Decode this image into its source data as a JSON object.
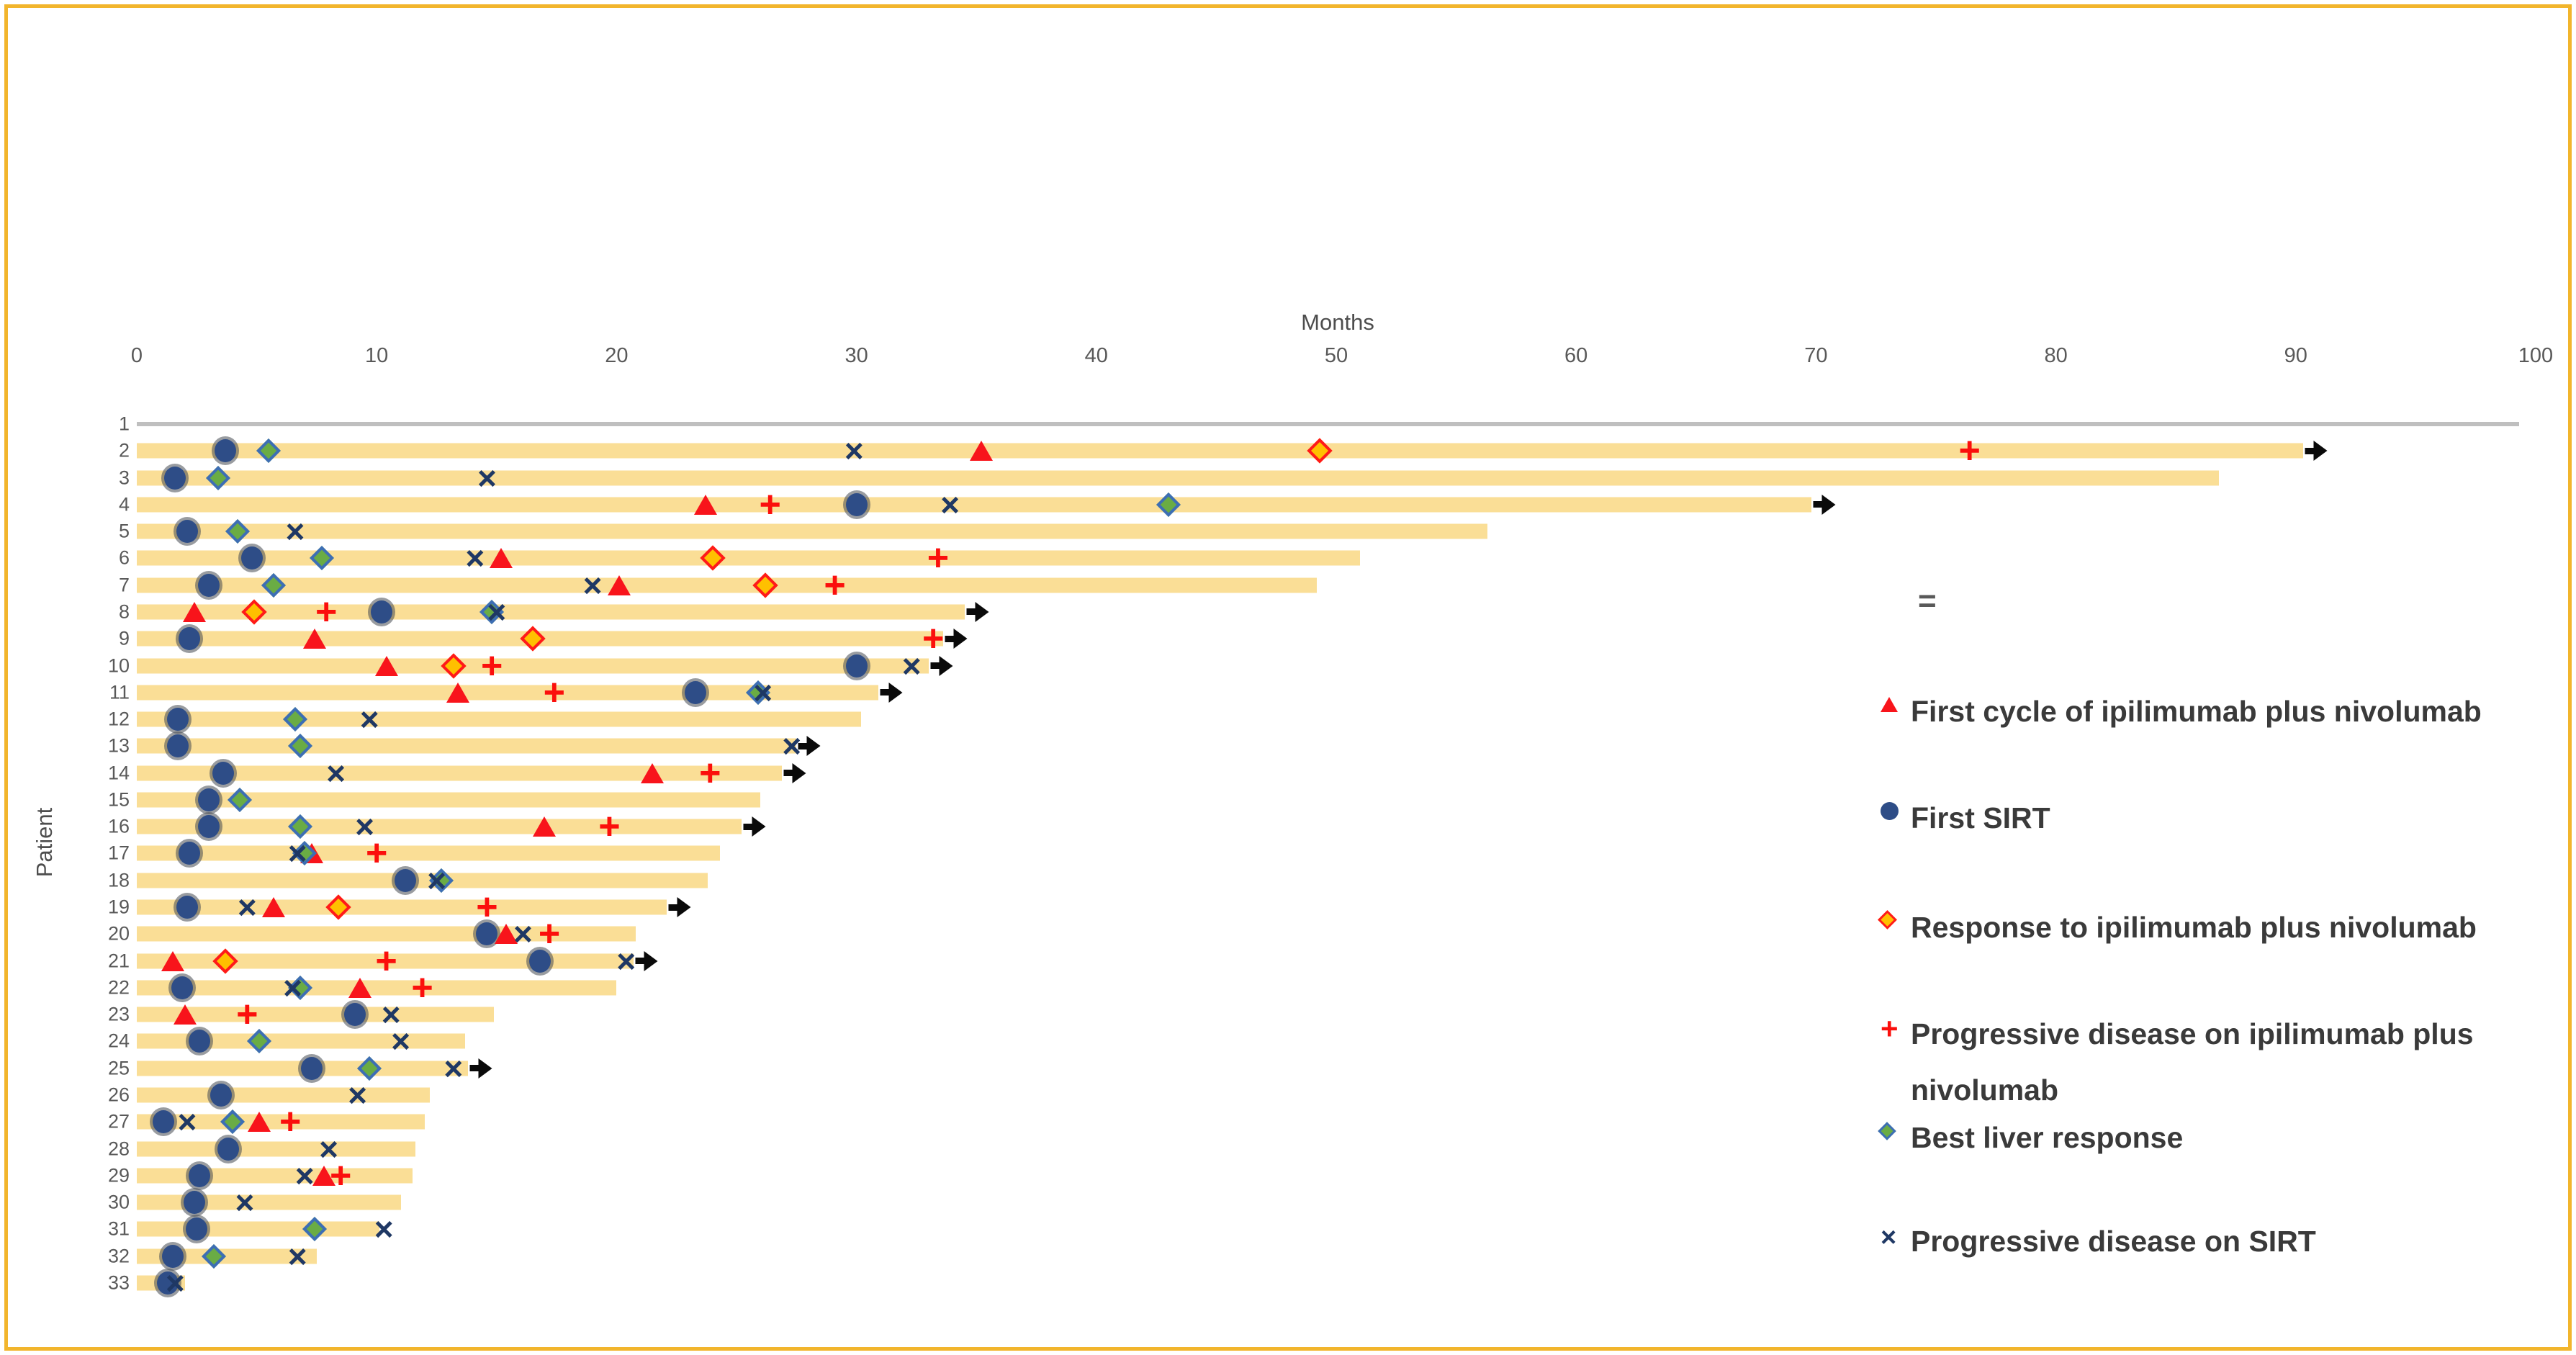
{
  "figure": {
    "frame_color": "#F2B52C",
    "background": "#ffffff"
  },
  "chart_data": {
    "type": "swimmer",
    "xlabel": "Months",
    "ylabel": "Patient",
    "xlim": [
      0,
      100
    ],
    "xticks": [
      0,
      10,
      20,
      30,
      40,
      50,
      60,
      70,
      80,
      90,
      100
    ],
    "grid": false,
    "legend_position": "right",
    "legend_note": "=",
    "bar_color": "#FADE96",
    "gray_bar_color": "#BFBFBF",
    "event_colors": {
      "first_ipi_nivo": "#F8141B",
      "first_sirt": "#2E4D87",
      "response_ipi_nivo_fill": "#FFC000",
      "response_ipi_nivo_border": "#FF1A1A",
      "pd_ipi_nivo": "#FB0F0C",
      "best_liver_fill": "#6AAC44",
      "best_liver_border": "#3D6EB5",
      "pd_sirt": "#1F3864",
      "ongoing_arrow": "#0a0a0a"
    },
    "legend": [
      {
        "key": "first_ipi_nivo",
        "label": "First cycle of ipilimumab plus nivolumab"
      },
      {
        "key": "first_sirt",
        "label": "First SIRT"
      },
      {
        "key": "response_ipi_nivo",
        "label": "Response to ipilimumab plus nivolumab"
      },
      {
        "key": "pd_ipi_nivo",
        "label": "Progressive disease on ipilimumab plus nivolumab"
      },
      {
        "key": "best_liver",
        "label": "Best liver response"
      },
      {
        "key": "pd_sirt",
        "label": "Progressive disease on SIRT"
      }
    ],
    "patients": [
      {
        "id": 1,
        "bar": 99.3,
        "style": "gray",
        "ongoing": false,
        "events": {}
      },
      {
        "id": 2,
        "bar": 90.3,
        "ongoing": true,
        "events": {
          "first_sirt": 3.7,
          "best_liver": 5.5,
          "pd_sirt": 29.9,
          "first_ipi_nivo": 35.2,
          "response_ipi_nivo": 49.3,
          "pd_ipi_nivo": 76.4
        }
      },
      {
        "id": 3,
        "bar": 86.8,
        "ongoing": false,
        "events": {
          "first_sirt": 1.6,
          "pd_ipi_nivo": 3.4,
          "best_liver": 3.4,
          "pd_sirt": 14.6
        }
      },
      {
        "id": 4,
        "bar": 69.8,
        "ongoing": true,
        "events": {
          "first_ipi_nivo": 23.7,
          "pd_ipi_nivo": 26.4,
          "first_sirt": 30.0,
          "pd_sirt": 33.9,
          "best_liver": 43.0
        }
      },
      {
        "id": 5,
        "bar": 56.3,
        "ongoing": false,
        "events": {
          "first_sirt": 2.1,
          "best_liver": 4.2,
          "pd_sirt": 6.6
        }
      },
      {
        "id": 6,
        "bar": 51.0,
        "ongoing": false,
        "events": {
          "first_sirt": 4.8,
          "best_liver": 7.7,
          "pd_sirt": 14.1,
          "first_ipi_nivo": 15.2,
          "response_ipi_nivo": 24.0,
          "pd_ipi_nivo": 33.4
        }
      },
      {
        "id": 7,
        "bar": 49.2,
        "ongoing": false,
        "events": {
          "first_sirt": 3.0,
          "best_liver": 5.7,
          "pd_sirt": 19.0,
          "first_ipi_nivo": 20.1,
          "response_ipi_nivo": 26.2,
          "pd_ipi_nivo": 29.1
        }
      },
      {
        "id": 8,
        "bar": 34.5,
        "ongoing": true,
        "events": {
          "first_ipi_nivo": 2.4,
          "response_ipi_nivo": 4.9,
          "pd_ipi_nivo": 7.9,
          "first_sirt": 10.2,
          "best_liver": 14.8,
          "pd_sirt": 15.0
        }
      },
      {
        "id": 9,
        "bar": 33.6,
        "ongoing": true,
        "events": {
          "first_sirt": 2.2,
          "first_ipi_nivo": 7.4,
          "response_ipi_nivo": 16.5,
          "pd_ipi_nivo": 33.2
        }
      },
      {
        "id": 10,
        "bar": 33.0,
        "ongoing": true,
        "events": {
          "first_ipi_nivo": 10.4,
          "response_ipi_nivo": 13.2,
          "pd_ipi_nivo": 14.8,
          "first_sirt": 30.0,
          "pd_sirt": 32.3
        }
      },
      {
        "id": 11,
        "bar": 30.9,
        "ongoing": true,
        "events": {
          "first_ipi_nivo": 13.4,
          "pd_ipi_nivo": 17.4,
          "first_sirt": 23.3,
          "best_liver": 25.9,
          "pd_sirt": 26.1
        }
      },
      {
        "id": 12,
        "bar": 30.2,
        "ongoing": false,
        "events": {
          "first_sirt": 1.7,
          "best_liver": 6.6,
          "pd_sirt": 9.7
        }
      },
      {
        "id": 13,
        "bar": 27.5,
        "ongoing": true,
        "events": {
          "first_sirt": 1.7,
          "best_liver": 6.8,
          "pd_sirt": 27.3
        }
      },
      {
        "id": 14,
        "bar": 26.9,
        "ongoing": true,
        "events": {
          "first_sirt": 3.6,
          "pd_sirt": 8.3,
          "first_ipi_nivo": 21.5,
          "pd_ipi_nivo": 23.9
        }
      },
      {
        "id": 15,
        "bar": 26.0,
        "ongoing": false,
        "events": {
          "first_sirt": 3.0,
          "best_liver": 4.3
        }
      },
      {
        "id": 16,
        "bar": 25.2,
        "ongoing": true,
        "events": {
          "first_sirt": 3.0,
          "best_liver": 6.8,
          "pd_sirt": 9.5,
          "first_ipi_nivo": 17.0,
          "pd_ipi_nivo": 19.7
        }
      },
      {
        "id": 17,
        "bar": 24.3,
        "ongoing": false,
        "events": {
          "first_sirt": 2.2,
          "pd_sirt": 6.7,
          "best_liver": 7.0,
          "first_ipi_nivo": 7.3,
          "pd_ipi_nivo": 10.0
        }
      },
      {
        "id": 18,
        "bar": 23.8,
        "ongoing": false,
        "events": {
          "first_sirt": 11.2,
          "pd_sirt": 12.5,
          "best_liver": 12.7
        }
      },
      {
        "id": 19,
        "bar": 22.1,
        "ongoing": true,
        "events": {
          "first_sirt": 2.1,
          "pd_sirt": 4.6,
          "first_ipi_nivo": 5.7,
          "response_ipi_nivo": 8.4,
          "pd_ipi_nivo": 14.6
        }
      },
      {
        "id": 20,
        "bar": 20.8,
        "ongoing": false,
        "events": {
          "first_sirt": 14.6,
          "first_ipi_nivo": 15.4,
          "pd_sirt": 16.1,
          "pd_ipi_nivo": 17.2
        }
      },
      {
        "id": 21,
        "bar": 20.7,
        "ongoing": true,
        "events": {
          "first_ipi_nivo": 1.5,
          "response_ipi_nivo": 3.7,
          "pd_ipi_nivo": 10.4,
          "first_sirt": 16.8,
          "pd_sirt": 20.4
        }
      },
      {
        "id": 22,
        "bar": 20.0,
        "ongoing": false,
        "events": {
          "first_sirt": 1.9,
          "pd_sirt": 6.5,
          "best_liver": 6.8,
          "first_ipi_nivo": 9.3,
          "pd_ipi_nivo": 11.9
        }
      },
      {
        "id": 23,
        "bar": 14.9,
        "ongoing": false,
        "events": {
          "first_ipi_nivo": 2.0,
          "pd_ipi_nivo": 4.6,
          "first_sirt": 9.1,
          "pd_sirt": 10.6
        }
      },
      {
        "id": 24,
        "bar": 13.7,
        "ongoing": false,
        "events": {
          "first_sirt": 2.6,
          "best_liver": 5.1,
          "pd_sirt": 11.0
        }
      },
      {
        "id": 25,
        "bar": 13.8,
        "ongoing": true,
        "events": {
          "first_sirt": 7.3,
          "best_liver": 9.7,
          "pd_sirt": 13.2
        }
      },
      {
        "id": 26,
        "bar": 12.2,
        "ongoing": false,
        "events": {
          "first_sirt": 3.5,
          "pd_sirt": 9.2
        }
      },
      {
        "id": 27,
        "bar": 12.0,
        "ongoing": false,
        "events": {
          "first_sirt": 1.1,
          "pd_sirt": 2.1,
          "best_liver": 4.0,
          "first_ipi_nivo": 5.1,
          "pd_ipi_nivo": 6.4
        }
      },
      {
        "id": 28,
        "bar": 11.6,
        "ongoing": false,
        "events": {
          "first_sirt": 3.8,
          "pd_sirt": 8.0
        }
      },
      {
        "id": 29,
        "bar": 11.5,
        "ongoing": false,
        "events": {
          "first_sirt": 2.6,
          "pd_sirt": 7.0,
          "first_ipi_nivo": 7.8,
          "pd_ipi_nivo": 8.5
        }
      },
      {
        "id": 30,
        "bar": 11.0,
        "ongoing": false,
        "events": {
          "first_sirt": 2.4,
          "pd_sirt": 4.5
        }
      },
      {
        "id": 31,
        "bar": 10.1,
        "ongoing": false,
        "events": {
          "first_sirt": 2.5,
          "best_liver": 7.4,
          "pd_sirt": 10.3
        }
      },
      {
        "id": 32,
        "bar": 7.5,
        "ongoing": false,
        "events": {
          "first_sirt": 1.5,
          "best_liver": 3.2,
          "pd_sirt": 6.7
        }
      },
      {
        "id": 33,
        "bar": 2.0,
        "ongoing": false,
        "events": {
          "first_sirt": 1.3,
          "pd_sirt": 1.6
        }
      }
    ]
  }
}
